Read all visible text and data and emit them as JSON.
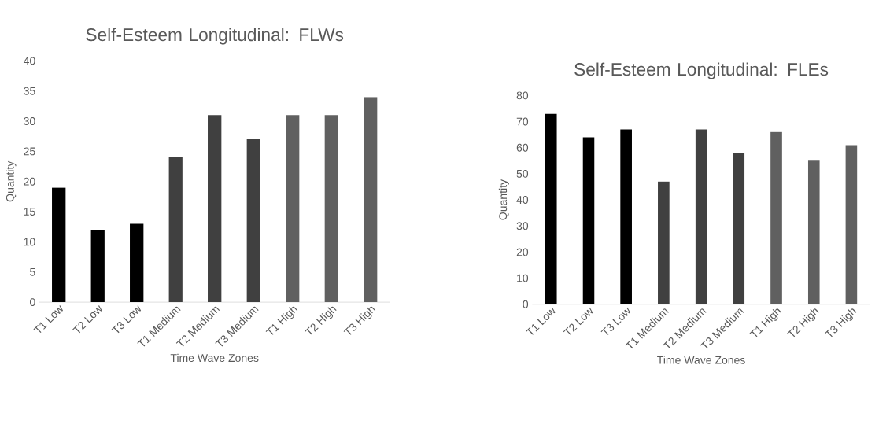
{
  "chart_data": [
    {
      "type": "bar",
      "title": "Self-Esteem Longitudinal: FLWs",
      "xlabel": "Time Wave Zones",
      "ylabel": "Quantity",
      "categories": [
        "T1 Low",
        "T2 Low",
        "T3 Low",
        "T1 Medium",
        "T2 Medium",
        "T3 Medium",
        "T1 High",
        "T2 High",
        "T3 High"
      ],
      "values": [
        19,
        12,
        13,
        24,
        31,
        27,
        31,
        31,
        34
      ],
      "colors": [
        "#000000",
        "#000000",
        "#000000",
        "#404040",
        "#404040",
        "#404040",
        "#606060",
        "#606060",
        "#606060"
      ],
      "ylim": [
        0,
        40
      ],
      "yticks": [
        0,
        5,
        10,
        15,
        20,
        25,
        30,
        35,
        40
      ]
    },
    {
      "type": "bar",
      "title": "Self-Esteem Longitudinal: FLEs",
      "xlabel": "Time Wave Zones",
      "ylabel": "Quantity",
      "categories": [
        "T1 Low",
        "T2 Low",
        "T3 Low",
        "T1 Medium",
        "T2 Medium",
        "T3 Medium",
        "T1 High",
        "T2 High",
        "T3 High"
      ],
      "values": [
        73,
        64,
        67,
        47,
        67,
        58,
        66,
        55,
        61
      ],
      "colors": [
        "#000000",
        "#000000",
        "#000000",
        "#404040",
        "#404040",
        "#404040",
        "#606060",
        "#606060",
        "#606060"
      ],
      "ylim": [
        0,
        80
      ],
      "yticks": [
        0,
        10,
        20,
        30,
        40,
        50,
        60,
        70,
        80
      ]
    }
  ]
}
